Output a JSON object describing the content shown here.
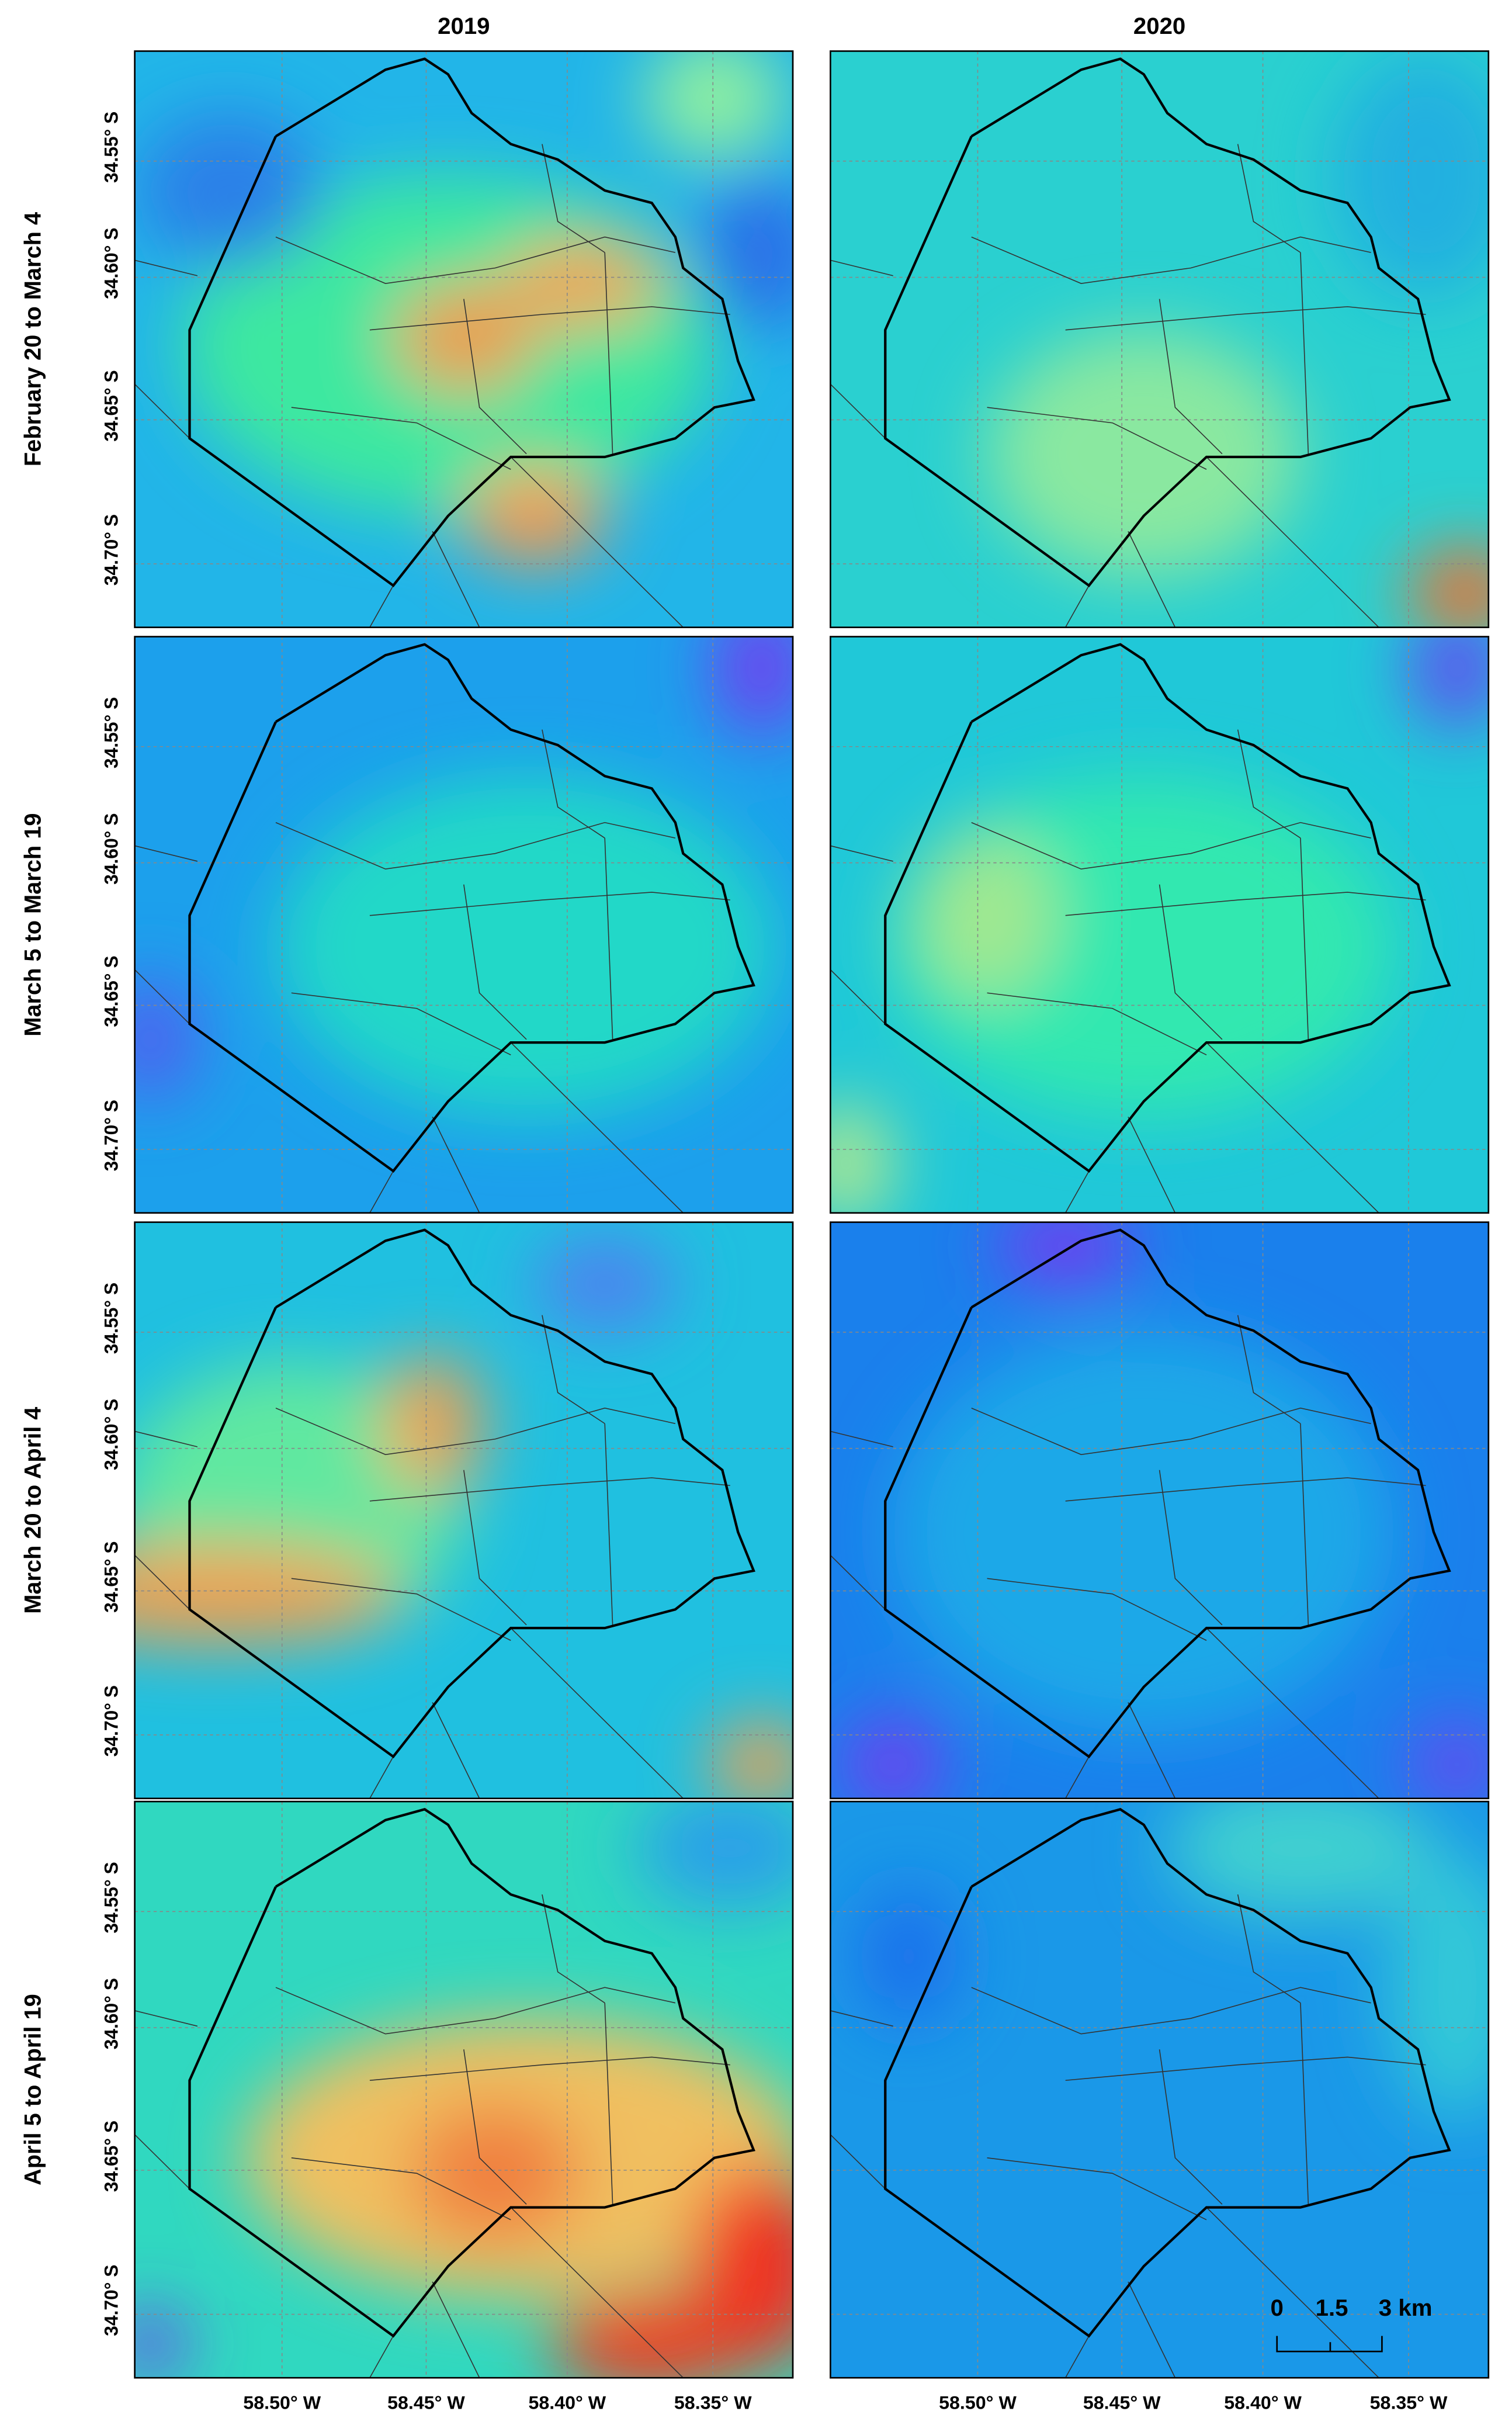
{
  "columns": [
    "2019",
    "2020"
  ],
  "rows": [
    "February 20 to March 4",
    "March 5 to March 19",
    "March 20 to April 4",
    "April 5 to April 19"
  ],
  "y_axis_labels": [
    "34.55° S",
    "34.60° S",
    "34.65° S",
    "34.70° S"
  ],
  "x_axis_labels": [
    "58.50° W",
    "58.45° W",
    "58.40° W",
    "58.35° W"
  ],
  "scale_bar": {
    "labels": [
      "0",
      "1.5",
      "3 km"
    ]
  }
}
